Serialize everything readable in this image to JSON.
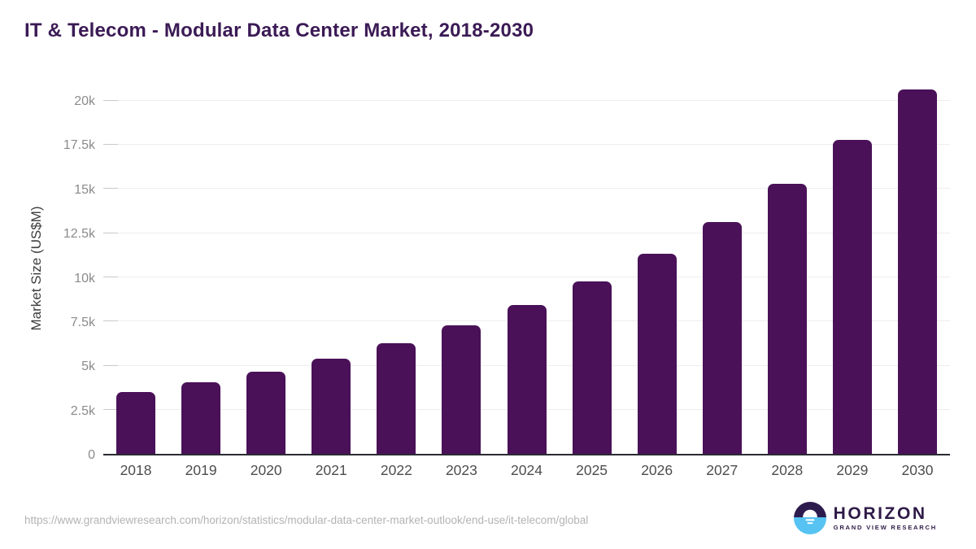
{
  "page": {
    "title": "IT & Telecom - Modular Data Center Market, 2018-2030"
  },
  "chart_data": {
    "type": "bar",
    "title": "IT & Telecom - Modular Data Center Market, 2018-2030",
    "categories": [
      "2018",
      "2019",
      "2020",
      "2021",
      "2022",
      "2023",
      "2024",
      "2025",
      "2026",
      "2027",
      "2028",
      "2029",
      "2030"
    ],
    "values": [
      3500,
      4050,
      4650,
      5400,
      6250,
      7250,
      8400,
      9750,
      11300,
      13100,
      15250,
      17750,
      20600
    ],
    "xlabel": "",
    "ylabel": "Market Size (US$M)",
    "ylim": [
      0,
      21150
    ],
    "yticks": [
      {
        "v": 0,
        "label": "0"
      },
      {
        "v": 2500,
        "label": "2.5k"
      },
      {
        "v": 5000,
        "label": "5k"
      },
      {
        "v": 7500,
        "label": "7.5k"
      },
      {
        "v": 10000,
        "label": "10k"
      },
      {
        "v": 12500,
        "label": "12.5k"
      },
      {
        "v": 15000,
        "label": "15k"
      },
      {
        "v": 17500,
        "label": "17.5k"
      },
      {
        "v": 20000,
        "label": "20k"
      }
    ],
    "grid": "horizontal",
    "legend": "none",
    "bar_color": "#4a1158"
  },
  "footer": {
    "source_url": "https://www.grandviewresearch.com/horizon/statistics/modular-data-center-market-outlook/end-use/it-telecom/global",
    "logo": {
      "name": "HORIZON",
      "subtitle": "GRAND VIEW RESEARCH",
      "icon": "horizon-sun-over-water-icon",
      "purple": "#2d1b4e",
      "blue": "#56c3f2"
    }
  },
  "colors": {
    "title": "#3b1a55",
    "bar": "#4a1158",
    "axis_line": "#2b2b33",
    "gridline": "#ededf0",
    "y_tick_text": "#8b8b8b",
    "x_tick_text": "#4d4d4d",
    "url_text": "#b3b3b3"
  }
}
